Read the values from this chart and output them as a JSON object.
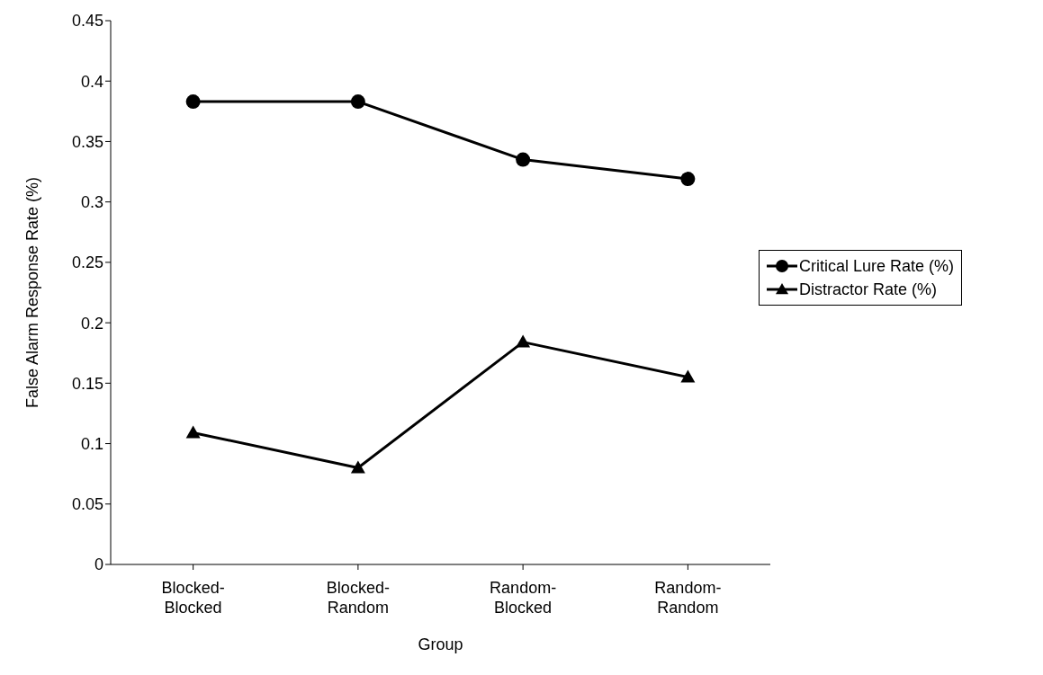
{
  "chart_data": {
    "type": "line",
    "xlabel": "Group",
    "ylabel": "False Alarm Response Rate (%)",
    "categories": [
      "Blocked-Blocked",
      "Blocked-Random",
      "Random-Blocked",
      "Random-Random"
    ],
    "series": [
      {
        "name": "Critical Lure Rate (%)",
        "color": "#000000",
        "marker": "circle",
        "values": [
          0.383,
          0.383,
          0.335,
          0.319
        ]
      },
      {
        "name": "Distractor Rate (%)",
        "color": "#000000",
        "marker": "triangle",
        "values": [
          0.109,
          0.08,
          0.184,
          0.155
        ]
      }
    ],
    "ylim": [
      0,
      0.45
    ],
    "yticks": [
      0,
      0.05,
      0.1,
      0.15,
      0.2,
      0.25,
      0.3,
      0.35,
      0.4,
      0.45
    ],
    "grid": false,
    "legend": "right",
    "line_style": "solid"
  }
}
